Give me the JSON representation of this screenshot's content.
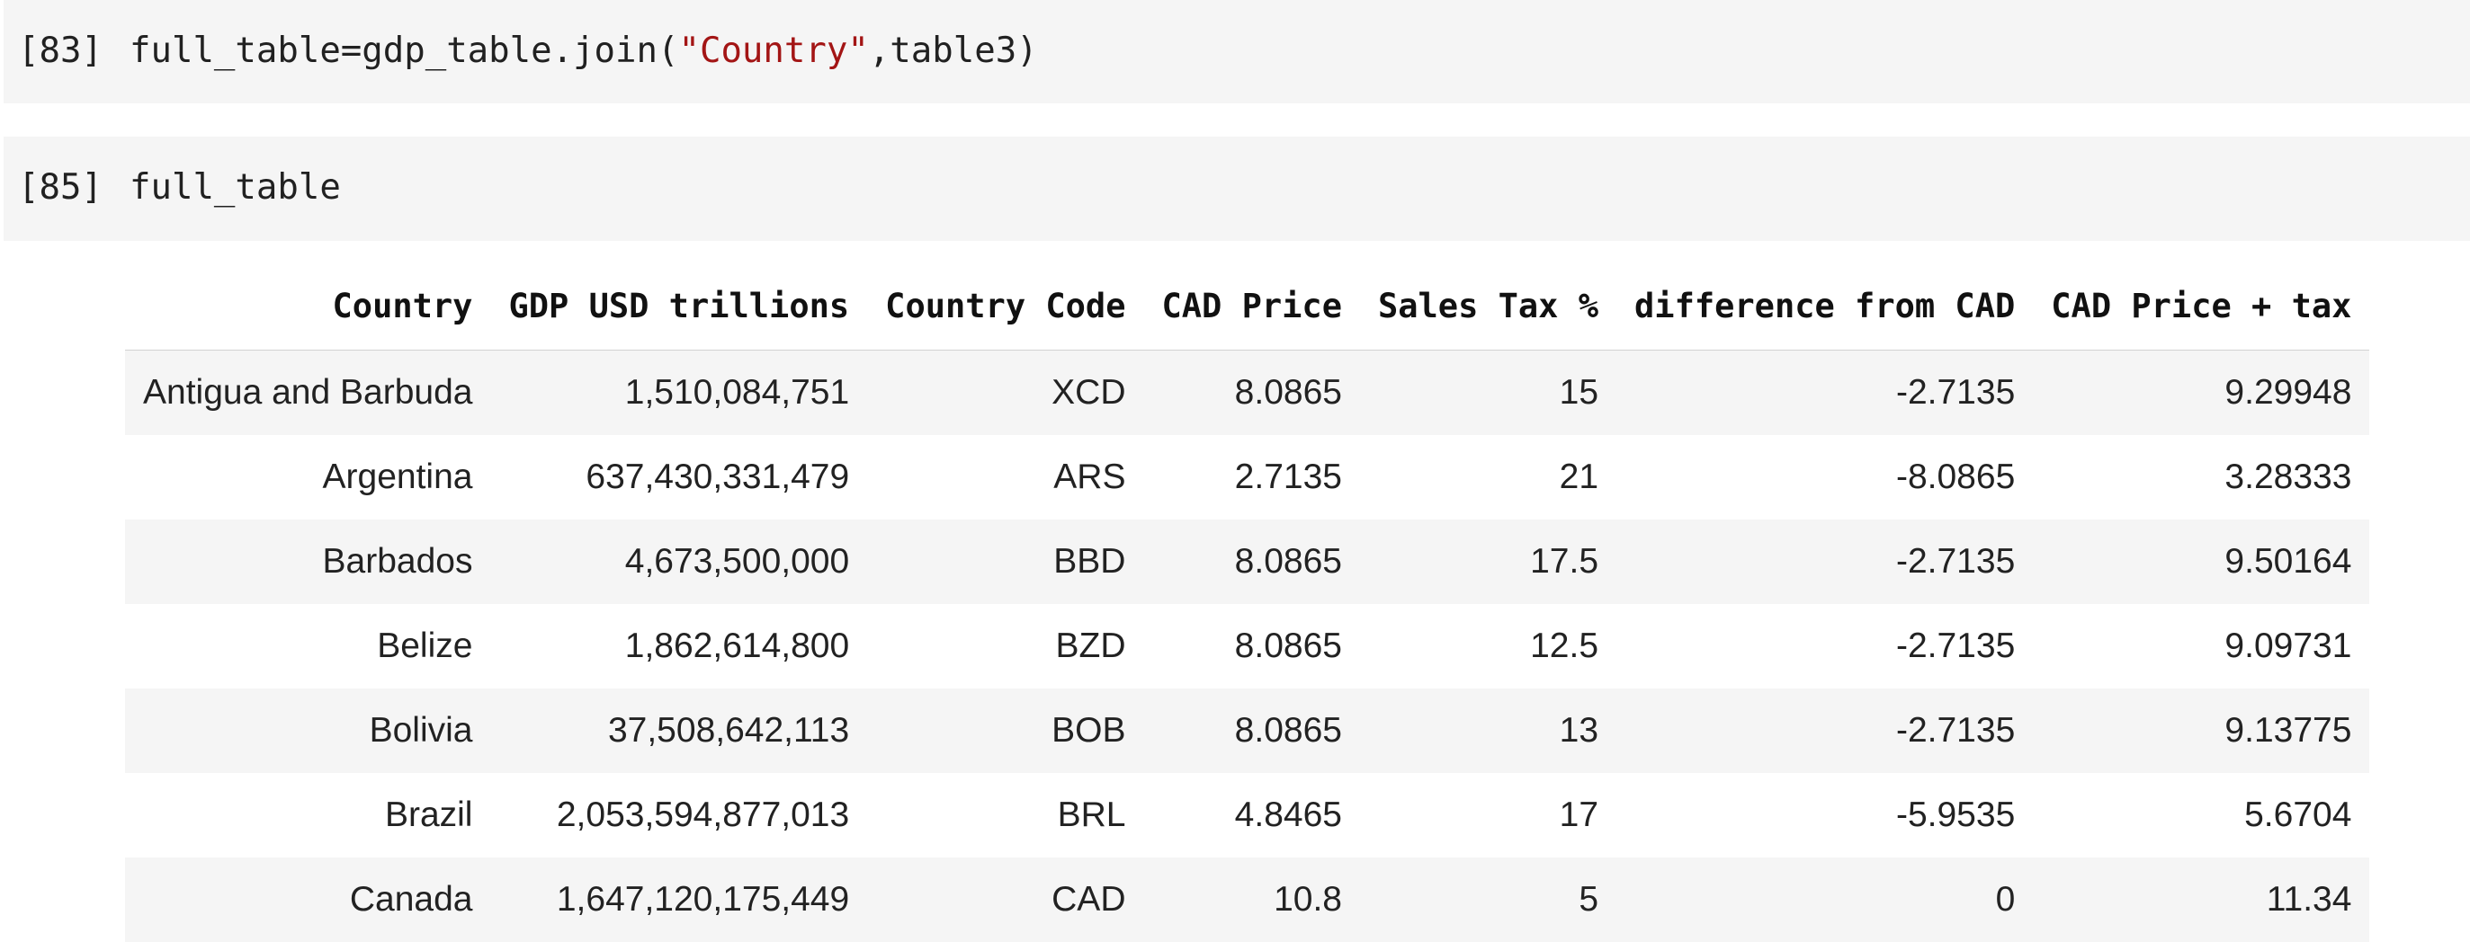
{
  "cells": [
    {
      "prompt": "[83]",
      "code_prefix": "full_table=gdp_table.join(",
      "code_string": "\"Country\"",
      "code_suffix": ",table3)"
    },
    {
      "prompt": "[85]",
      "code": "full_table"
    }
  ],
  "table": {
    "headers": [
      "Country",
      "GDP USD trillions",
      "Country Code",
      "CAD Price",
      "Sales Tax %",
      "difference from CAD",
      "CAD Price + tax"
    ],
    "rows": [
      [
        "Antigua and Barbuda",
        "1,510,084,751",
        "XCD",
        "8.0865",
        "15",
        "-2.7135",
        "9.29948"
      ],
      [
        "Argentina",
        "637,430,331,479",
        "ARS",
        "2.7135",
        "21",
        "-8.0865",
        "3.28333"
      ],
      [
        "Barbados",
        "4,673,500,000",
        "BBD",
        "8.0865",
        "17.5",
        "-2.7135",
        "9.50164"
      ],
      [
        "Belize",
        "1,862,614,800",
        "BZD",
        "8.0865",
        "12.5",
        "-2.7135",
        "9.09731"
      ],
      [
        "Bolivia",
        "37,508,642,113",
        "BOB",
        "8.0865",
        "13",
        "-2.7135",
        "9.13775"
      ],
      [
        "Brazil",
        "2,053,594,877,013",
        "BRL",
        "4.8465",
        "17",
        "-5.9535",
        "5.6704"
      ],
      [
        "Canada",
        "1,647,120,175,449",
        "CAD",
        "10.8",
        "5",
        "0",
        "11.34"
      ]
    ]
  },
  "colors": {
    "cell_background": "#f5f5f5",
    "string_literal": "#a31515"
  }
}
